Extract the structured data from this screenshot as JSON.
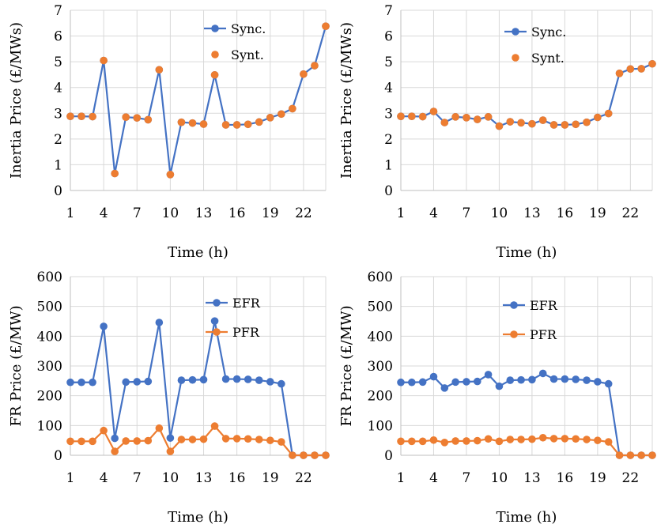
{
  "colors": {
    "blue": "#4472c4",
    "orange": "#ed7d31"
  },
  "chart_data": [
    {
      "type": "line",
      "title": "",
      "xlabel": "Time (h)",
      "ylabel": "Inertia Price (£/MWs)",
      "ylim": [
        0,
        7
      ],
      "yticks": [
        "0",
        "1",
        "2",
        "3",
        "4",
        "5",
        "6",
        "7"
      ],
      "xlim": [
        1,
        24
      ],
      "xticks": [
        1,
        4,
        7,
        10,
        13,
        16,
        19,
        22
      ],
      "x": [
        1,
        2,
        3,
        4,
        5,
        6,
        7,
        8,
        9,
        10,
        11,
        12,
        13,
        14,
        15,
        16,
        17,
        18,
        19,
        20,
        21,
        22,
        23,
        24
      ],
      "legend_position": "top-right",
      "series": [
        {
          "name": "Sync.",
          "style": "line-markers",
          "color": "#4472c4",
          "values": [
            2.88,
            2.88,
            2.87,
            5.05,
            0.66,
            2.85,
            2.82,
            2.75,
            4.69,
            0.62,
            2.65,
            2.62,
            2.58,
            4.49,
            2.55,
            2.55,
            2.57,
            2.66,
            2.83,
            2.97,
            3.18,
            4.52,
            4.85,
            6.38
          ]
        },
        {
          "name": "Synt.",
          "style": "markers",
          "color": "#ed7d31",
          "values": [
            2.88,
            2.88,
            2.87,
            5.05,
            0.66,
            2.85,
            2.82,
            2.75,
            4.69,
            0.62,
            2.65,
            2.62,
            2.58,
            4.49,
            2.55,
            2.55,
            2.57,
            2.66,
            2.83,
            2.97,
            3.18,
            4.52,
            4.85,
            6.38
          ]
        }
      ]
    },
    {
      "type": "line",
      "title": "",
      "xlabel": "Time (h)",
      "ylabel": "Inertia Price (£/MWs)",
      "ylim": [
        0,
        7
      ],
      "yticks": [
        "0",
        "1",
        "2",
        "3",
        "4",
        "5",
        "6",
        "7"
      ],
      "xlim": [
        1,
        24
      ],
      "xticks": [
        1,
        4,
        7,
        10,
        13,
        16,
        19,
        22
      ],
      "x": [
        1,
        2,
        3,
        4,
        5,
        6,
        7,
        8,
        9,
        10,
        11,
        12,
        13,
        14,
        15,
        16,
        17,
        18,
        19,
        20,
        21,
        22,
        23,
        24
      ],
      "legend_position": "top-right",
      "series": [
        {
          "name": "Sync.",
          "style": "line-markers",
          "color": "#4472c4",
          "values": [
            2.88,
            2.88,
            2.87,
            3.07,
            2.64,
            2.86,
            2.83,
            2.76,
            2.86,
            2.5,
            2.67,
            2.63,
            2.59,
            2.73,
            2.55,
            2.55,
            2.57,
            2.65,
            2.84,
            2.99,
            4.55,
            4.72,
            4.73,
            4.92
          ]
        },
        {
          "name": "Synt.",
          "style": "markers",
          "color": "#ed7d31",
          "values": [
            2.88,
            2.88,
            2.87,
            3.07,
            2.64,
            2.86,
            2.83,
            2.76,
            2.86,
            2.5,
            2.67,
            2.63,
            2.59,
            2.73,
            2.55,
            2.55,
            2.57,
            2.65,
            2.84,
            2.99,
            4.55,
            4.72,
            4.73,
            4.92
          ]
        }
      ]
    },
    {
      "type": "line",
      "title": "",
      "xlabel": "Time (h)",
      "ylabel": "FR Price (£/MW)",
      "ylim": [
        0,
        600
      ],
      "yticks": [
        "0",
        "100",
        "200",
        "300",
        "400",
        "500",
        "600"
      ],
      "xlim": [
        1,
        24
      ],
      "xticks": [
        1,
        4,
        7,
        10,
        13,
        16,
        19,
        22
      ],
      "x": [
        1,
        2,
        3,
        4,
        5,
        6,
        7,
        8,
        9,
        10,
        11,
        12,
        13,
        14,
        15,
        16,
        17,
        18,
        19,
        20,
        21,
        22,
        23,
        24
      ],
      "legend_position": "top-right",
      "series": [
        {
          "name": "EFR",
          "style": "line-markers",
          "color": "#4472c4",
          "values": [
            245,
            245,
            245,
            433,
            57,
            246,
            247,
            248,
            446,
            58,
            252,
            253,
            254,
            451,
            256,
            256,
            255,
            252,
            247,
            240,
            0,
            0,
            0,
            0
          ]
        },
        {
          "name": "PFR",
          "style": "line-markers",
          "color": "#ed7d31",
          "values": [
            47,
            47,
            47,
            83,
            13,
            48,
            48,
            49,
            91,
            13,
            53,
            53,
            54,
            98,
            56,
            56,
            55,
            53,
            50,
            45,
            0,
            0,
            0,
            0
          ]
        }
      ]
    },
    {
      "type": "line",
      "title": "",
      "xlabel": "Time (h)",
      "ylabel": "FR Price (£/MW)",
      "ylim": [
        0,
        600
      ],
      "yticks": [
        "0",
        "100",
        "200",
        "300",
        "400",
        "500",
        "600"
      ],
      "xlim": [
        1,
        24
      ],
      "xticks": [
        1,
        4,
        7,
        10,
        13,
        16,
        19,
        22
      ],
      "x": [
        1,
        2,
        3,
        4,
        5,
        6,
        7,
        8,
        9,
        10,
        11,
        12,
        13,
        14,
        15,
        16,
        17,
        18,
        19,
        20,
        21,
        22,
        23,
        24
      ],
      "legend_position": "top-center",
      "series": [
        {
          "name": "EFR",
          "style": "line-markers",
          "color": "#4472c4",
          "values": [
            245,
            245,
            246,
            264,
            226,
            246,
            247,
            248,
            271,
            232,
            252,
            253,
            254,
            275,
            256,
            256,
            255,
            252,
            247,
            240,
            0,
            0,
            0,
            0
          ]
        },
        {
          "name": "PFR",
          "style": "line-markers",
          "color": "#ed7d31",
          "values": [
            47,
            47,
            47,
            51,
            43,
            48,
            48,
            49,
            55,
            47,
            53,
            53,
            54,
            59,
            56,
            56,
            55,
            53,
            50,
            45,
            0,
            0,
            0,
            0
          ]
        }
      ]
    }
  ]
}
